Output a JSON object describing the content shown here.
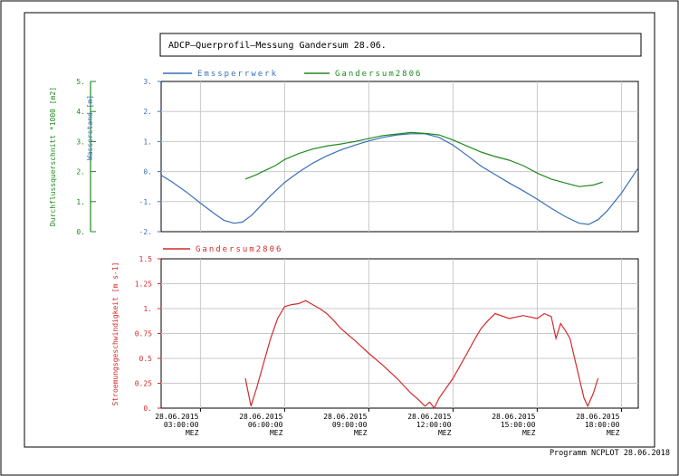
{
  "title": "ADCP–Querprofil–Messung  Gandersum  28.06.",
  "footer": "Programm NCPLOT  28.06.2018",
  "colors": {
    "blue": "#3a6fb8",
    "green": "#1f8a1f",
    "red": "#d42a2a",
    "grid": "#c8c8c8",
    "frame": "#000000"
  },
  "chart_data": [
    {
      "type": "line",
      "ylabel": "Wasserstand [m]",
      "ylabel_secondary": "Durchflussquerschnitt *1000 [m2]",
      "ylim": [
        -2,
        3
      ],
      "yticks": [
        "3.",
        "2.",
        "1.",
        "0.",
        "-1.",
        "-2."
      ],
      "ylim_secondary": [
        0,
        5
      ],
      "yticks_secondary": [
        "5.",
        "4.",
        "3.",
        "2.",
        "1.",
        "0."
      ],
      "xlim": [
        "01:36",
        "18:36"
      ],
      "grid": true,
      "legend_position": "top-left",
      "series": [
        {
          "name": "Emssperrwerk",
          "axis": "left",
          "points": [
            [
              "01:36",
              -0.12
            ],
            [
              "02:00",
              -0.35
            ],
            [
              "02:30",
              -0.68
            ],
            [
              "03:00",
              -1.05
            ],
            [
              "03:30",
              -1.4
            ],
            [
              "03:50",
              -1.62
            ],
            [
              "04:12",
              -1.72
            ],
            [
              "04:30",
              -1.68
            ],
            [
              "04:50",
              -1.45
            ],
            [
              "05:10",
              -1.12
            ],
            [
              "05:30",
              -0.8
            ],
            [
              "06:00",
              -0.36
            ],
            [
              "06:30",
              -0.02
            ],
            [
              "07:00",
              0.28
            ],
            [
              "07:30",
              0.52
            ],
            [
              "08:00",
              0.72
            ],
            [
              "08:30",
              0.88
            ],
            [
              "09:00",
              1.02
            ],
            [
              "09:30",
              1.14
            ],
            [
              "10:00",
              1.22
            ],
            [
              "10:30",
              1.26
            ],
            [
              "11:00",
              1.26
            ],
            [
              "11:30",
              1.14
            ],
            [
              "12:00",
              0.88
            ],
            [
              "12:30",
              0.54
            ],
            [
              "13:00",
              0.18
            ],
            [
              "13:30",
              -0.1
            ],
            [
              "14:00",
              -0.38
            ],
            [
              "14:30",
              -0.64
            ],
            [
              "15:00",
              -0.92
            ],
            [
              "15:30",
              -1.22
            ],
            [
              "16:00",
              -1.5
            ],
            [
              "16:30",
              -1.72
            ],
            [
              "16:50",
              -1.76
            ],
            [
              "17:10",
              -1.6
            ],
            [
              "17:30",
              -1.3
            ],
            [
              "18:00",
              -0.72
            ],
            [
              "18:36",
              0.12
            ]
          ]
        },
        {
          "name": "Gandersum2806",
          "axis": "right",
          "points": [
            [
              "04:36",
              1.75
            ],
            [
              "05:00",
              1.9
            ],
            [
              "05:20",
              2.05
            ],
            [
              "05:40",
              2.2
            ],
            [
              "06:00",
              2.4
            ],
            [
              "06:30",
              2.6
            ],
            [
              "07:00",
              2.75
            ],
            [
              "07:30",
              2.85
            ],
            [
              "08:00",
              2.92
            ],
            [
              "08:30",
              3.0
            ],
            [
              "09:00",
              3.1
            ],
            [
              "09:30",
              3.2
            ],
            [
              "10:00",
              3.25
            ],
            [
              "10:30",
              3.3
            ],
            [
              "11:00",
              3.27
            ],
            [
              "11:30",
              3.22
            ],
            [
              "12:00",
              3.05
            ],
            [
              "12:30",
              2.85
            ],
            [
              "13:00",
              2.65
            ],
            [
              "13:30",
              2.5
            ],
            [
              "14:00",
              2.38
            ],
            [
              "14:30",
              2.2
            ],
            [
              "15:00",
              1.95
            ],
            [
              "15:30",
              1.75
            ],
            [
              "16:00",
              1.62
            ],
            [
              "16:30",
              1.5
            ],
            [
              "17:00",
              1.55
            ],
            [
              "17:20",
              1.65
            ]
          ]
        }
      ]
    },
    {
      "type": "line",
      "ylabel": "Stroemungsgeschwindigkeit [m s-1]",
      "ylim": [
        0,
        1.5
      ],
      "yticks": [
        "1.5",
        "1.25",
        "1.",
        "0.75",
        "0.5",
        "0.25",
        "0."
      ],
      "xlim": [
        "01:36",
        "18:36"
      ],
      "grid": true,
      "legend_position": "top-left",
      "xticks": [
        {
          "date": "28.06.2015",
          "time": "03:00:00",
          "zone": "MEZ"
        },
        {
          "date": "28.06.2015",
          "time": "06:00:00",
          "zone": "MEZ"
        },
        {
          "date": "28.06.2015",
          "time": "09:00:00",
          "zone": "MEZ"
        },
        {
          "date": "28.06.2015",
          "time": "12:00:00",
          "zone": "MEZ"
        },
        {
          "date": "28.06.2015",
          "time": "15:00:00",
          "zone": "MEZ"
        },
        {
          "date": "28.06.2015",
          "time": "18:00:00",
          "zone": "MEZ"
        }
      ],
      "series": [
        {
          "name": "Gandersum2806",
          "points": [
            [
              "04:36",
              0.3
            ],
            [
              "04:48",
              0.02
            ],
            [
              "05:00",
              0.2
            ],
            [
              "05:15",
              0.45
            ],
            [
              "05:30",
              0.7
            ],
            [
              "05:45",
              0.9
            ],
            [
              "06:00",
              1.02
            ],
            [
              "06:15",
              1.04
            ],
            [
              "06:30",
              1.05
            ],
            [
              "06:45",
              1.08
            ],
            [
              "07:00",
              1.04
            ],
            [
              "07:15",
              1.0
            ],
            [
              "07:30",
              0.95
            ],
            [
              "07:45",
              0.88
            ],
            [
              "08:00",
              0.8
            ],
            [
              "08:30",
              0.68
            ],
            [
              "09:00",
              0.55
            ],
            [
              "09:30",
              0.43
            ],
            [
              "10:00",
              0.3
            ],
            [
              "10:30",
              0.15
            ],
            [
              "10:45",
              0.09
            ],
            [
              "11:00",
              0.02
            ],
            [
              "11:10",
              0.06
            ],
            [
              "11:20",
              0.0
            ],
            [
              "11:30",
              0.1
            ],
            [
              "12:00",
              0.3
            ],
            [
              "12:30",
              0.55
            ],
            [
              "12:45",
              0.68
            ],
            [
              "13:00",
              0.8
            ],
            [
              "13:15",
              0.88
            ],
            [
              "13:30",
              0.95
            ],
            [
              "14:00",
              0.9
            ],
            [
              "14:30",
              0.93
            ],
            [
              "15:00",
              0.9
            ],
            [
              "15:15",
              0.95
            ],
            [
              "15:30",
              0.92
            ],
            [
              "15:40",
              0.7
            ],
            [
              "15:50",
              0.85
            ],
            [
              "16:00",
              0.78
            ],
            [
              "16:10",
              0.7
            ],
            [
              "16:20",
              0.5
            ],
            [
              "16:30",
              0.3
            ],
            [
              "16:40",
              0.1
            ],
            [
              "16:48",
              0.02
            ],
            [
              "17:00",
              0.15
            ],
            [
              "17:10",
              0.3
            ]
          ]
        }
      ]
    }
  ]
}
